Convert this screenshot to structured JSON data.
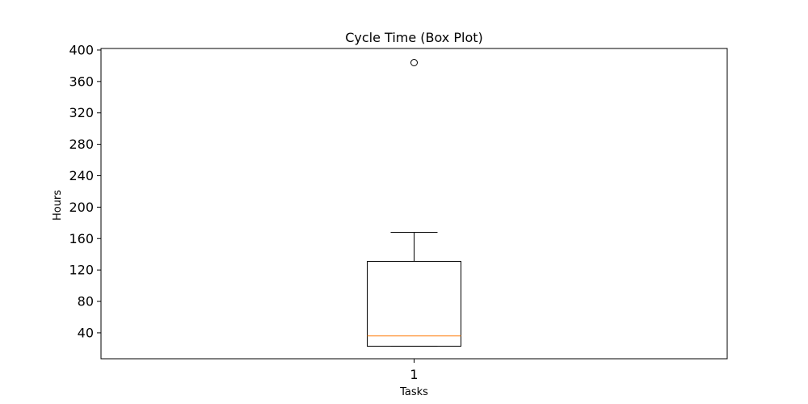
{
  "chart_data": {
    "type": "box",
    "title": "Cycle Time (Box Plot)",
    "xlabel": "Tasks",
    "ylabel": "Hours",
    "categories": [
      "1"
    ],
    "yticks": [
      "40",
      "80",
      "120",
      "160",
      "200",
      "240",
      "280",
      "320",
      "360",
      "400"
    ],
    "ylim": [
      7,
      402
    ],
    "grid": false,
    "boxes": [
      {
        "category": "1",
        "whisker_low": 23,
        "q1": 23,
        "median": 36,
        "q3": 131,
        "whisker_high": 168,
        "outliers": [
          384
        ]
      }
    ],
    "colors": {
      "box": "#000000",
      "median": "#ff7f0e",
      "outlier": "#000000"
    }
  }
}
